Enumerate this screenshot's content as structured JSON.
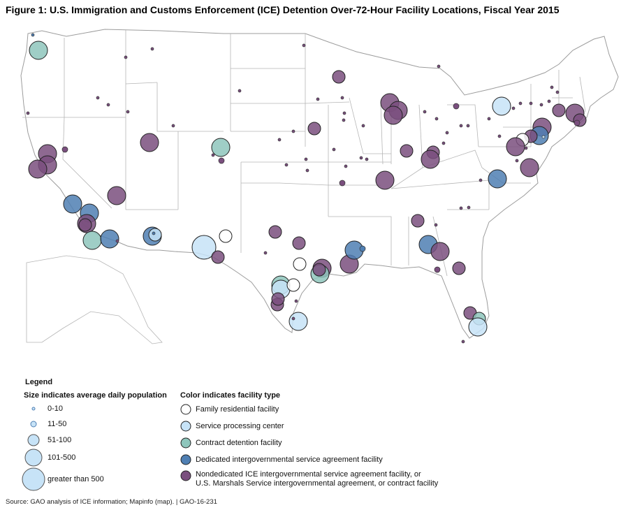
{
  "title": "Figure 1: U.S. Immigration and Customs Enforcement (ICE) Detention Over-72-Hour Facility Locations, Fiscal Year 2015",
  "legend": {
    "title": "Legend",
    "size_heading": "Size indicates average daily population",
    "color_heading": "Color indicates facility type",
    "sizes": [
      {
        "label": "0-10",
        "radius_class": 1
      },
      {
        "label": "11-50",
        "radius_class": 2
      },
      {
        "label": "51-100",
        "radius_class": 3
      },
      {
        "label": "101-500",
        "radius_class": 4
      },
      {
        "label": "greater than 500",
        "radius_class": 5
      }
    ],
    "types": [
      {
        "key": "family",
        "label": "Family residential facility",
        "color": "#ffffff"
      },
      {
        "key": "spc",
        "label": "Service processing center",
        "color": "#c7e3f7"
      },
      {
        "key": "contract",
        "label": "Contract detention facility",
        "color": "#8ec6bc"
      },
      {
        "key": "digsa",
        "label": "Dedicated intergovernmental service agreement facility",
        "color": "#4f7fb3"
      },
      {
        "key": "nondedicated",
        "label": "Nondedicated ICE intergovernmental service agreement facility, or",
        "label2": "U.S. Marshals Service intergovernmental agreement, or contract facility",
        "color": "#7a4f7e"
      }
    ]
  },
  "source": "Source: GAO analysis of ICE information; Mapinfo (map).  |  GAO-16-231",
  "map": {
    "land_fill": "#ffffff",
    "border_color": "#b5b5b5",
    "facility_size_classes": {
      "1": 2,
      "2": 4,
      "3": 9,
      "4": 13,
      "5": 17
    }
  }
}
